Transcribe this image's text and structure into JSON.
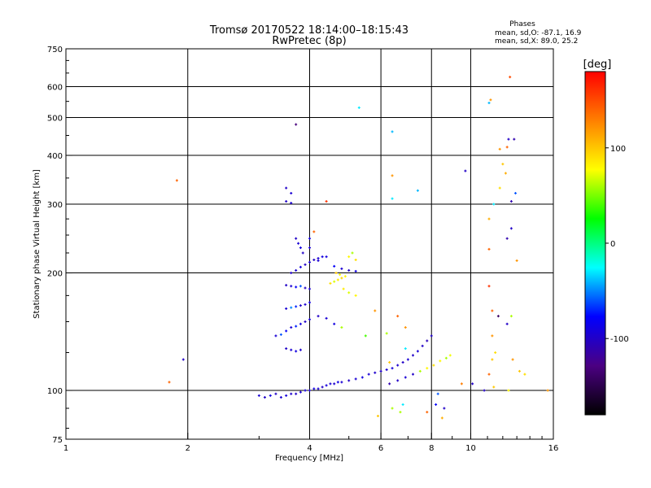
{
  "chart_data": {
    "type": "scatter",
    "title": "Tromsø 20170522 18:14:00–18:15:43",
    "subtitle": "RwPretec (8p)",
    "xlabel": "Frequency [MHz]",
    "ylabel": "Stationary phase Virtual Height [km]",
    "x_scale": "log",
    "y_scale": "log",
    "xlim": [
      1,
      16
    ],
    "ylim": [
      75,
      750
    ],
    "x_ticks": [
      1,
      2,
      4,
      6,
      8,
      10,
      16
    ],
    "y_ticks": [
      75,
      100,
      200,
      300,
      400,
      500,
      600,
      750
    ],
    "x_gridlines": [
      2,
      4,
      6,
      8,
      10
    ],
    "y_gridlines": [
      100,
      200,
      300,
      400,
      500,
      600
    ],
    "phases_box": {
      "heading": "Phases",
      "line_o": "mean, sd,O:  -87.1, 16.9",
      "line_x": "mean, sd,X:   89.0, 25.2"
    },
    "colorbar": {
      "label": "[deg]",
      "range": [
        -180,
        180
      ],
      "ticks": [
        100,
        0,
        -100
      ],
      "colors": [
        "#000000",
        "#4b0082",
        "#0000ff",
        "#00ffff",
        "#00ff00",
        "#ffff00",
        "#ff8000",
        "#ff0000"
      ]
    },
    "points": [
      [
        3.0,
        97,
        -95
      ],
      [
        3.1,
        96,
        -100
      ],
      [
        3.2,
        97,
        -90
      ],
      [
        3.3,
        98,
        -100
      ],
      [
        3.4,
        96,
        -95
      ],
      [
        3.5,
        97,
        -92
      ],
      [
        3.6,
        98,
        -98
      ],
      [
        3.7,
        98,
        -100
      ],
      [
        3.8,
        99,
        -95
      ],
      [
        3.9,
        100,
        -92
      ],
      [
        4.0,
        100,
        -98
      ],
      [
        4.1,
        101,
        -90
      ],
      [
        4.2,
        101,
        -95
      ],
      [
        4.3,
        102,
        -100
      ],
      [
        4.4,
        103,
        -92
      ],
      [
        4.5,
        104,
        -95
      ],
      [
        4.6,
        104,
        -97
      ],
      [
        4.7,
        105,
        -88
      ],
      [
        4.8,
        105,
        -95
      ],
      [
        5.0,
        106,
        -100
      ],
      [
        5.2,
        107,
        -95
      ],
      [
        5.4,
        108,
        -90
      ],
      [
        5.6,
        110,
        -95
      ],
      [
        5.8,
        111,
        -98
      ],
      [
        6.0,
        112,
        -100
      ],
      [
        6.2,
        113,
        -95
      ],
      [
        6.4,
        114,
        -92
      ],
      [
        6.6,
        116,
        -98
      ],
      [
        6.8,
        118,
        -100
      ],
      [
        7.0,
        120,
        -95
      ],
      [
        7.2,
        123,
        -100
      ],
      [
        7.4,
        126,
        -95
      ],
      [
        7.6,
        130,
        -100
      ],
      [
        7.8,
        134,
        -105
      ],
      [
        8.0,
        138,
        -100
      ],
      [
        6.3,
        104,
        -110
      ],
      [
        6.6,
        106,
        -100
      ],
      [
        6.9,
        108,
        -95
      ],
      [
        7.2,
        110,
        -100
      ],
      [
        7.5,
        112,
        60
      ],
      [
        7.8,
        114,
        80
      ],
      [
        8.1,
        116,
        90
      ],
      [
        8.4,
        119,
        80
      ],
      [
        8.7,
        121,
        60
      ],
      [
        8.9,
        123,
        75
      ],
      [
        3.3,
        138,
        -95
      ],
      [
        3.4,
        139,
        -60
      ],
      [
        3.5,
        142,
        -80
      ],
      [
        3.6,
        145,
        -95
      ],
      [
        3.7,
        146,
        -70
      ],
      [
        3.8,
        148,
        -90
      ],
      [
        3.9,
        150,
        -100
      ],
      [
        4.0,
        152,
        -95
      ],
      [
        4.2,
        155,
        -100
      ],
      [
        4.4,
        153,
        -95
      ],
      [
        4.6,
        148,
        -90
      ],
      [
        4.8,
        145,
        60
      ],
      [
        3.5,
        128,
        -100
      ],
      [
        3.6,
        127,
        -95
      ],
      [
        3.7,
        126,
        -90
      ],
      [
        3.8,
        127,
        -98
      ],
      [
        3.5,
        162,
        -95
      ],
      [
        3.6,
        163,
        -50
      ],
      [
        3.7,
        164,
        -70
      ],
      [
        3.8,
        165,
        -100
      ],
      [
        3.9,
        166,
        -95
      ],
      [
        4.0,
        168,
        -90
      ],
      [
        3.5,
        186,
        -100
      ],
      [
        3.6,
        185,
        -95
      ],
      [
        3.7,
        184,
        -80
      ],
      [
        3.8,
        185,
        -60
      ],
      [
        3.9,
        183,
        -100
      ],
      [
        4.0,
        182,
        -95
      ],
      [
        3.6,
        200,
        -100
      ],
      [
        3.7,
        203,
        -95
      ],
      [
        3.8,
        207,
        -90
      ],
      [
        3.9,
        210,
        -100
      ],
      [
        4.0,
        213,
        -95
      ],
      [
        4.1,
        216,
        -100
      ],
      [
        4.2,
        218,
        -95
      ],
      [
        4.3,
        220,
        -90
      ],
      [
        4.6,
        190,
        70
      ],
      [
        4.7,
        192,
        85
      ],
      [
        4.8,
        194,
        95
      ],
      [
        4.9,
        196,
        80
      ],
      [
        4.65,
        200,
        100
      ],
      [
        4.75,
        198,
        75
      ],
      [
        4.5,
        188,
        90
      ],
      [
        4.85,
        182,
        85
      ],
      [
        5.0,
        178,
        70
      ],
      [
        5.2,
        175,
        80
      ],
      [
        4.2,
        215,
        -95
      ],
      [
        4.4,
        220,
        -90
      ],
      [
        4.6,
        208,
        -80
      ],
      [
        4.8,
        205,
        -95
      ],
      [
        5.0,
        203,
        -100
      ],
      [
        5.2,
        202,
        -90
      ],
      [
        5.0,
        220,
        80
      ],
      [
        5.1,
        225,
        60
      ],
      [
        5.2,
        216,
        90
      ],
      [
        3.7,
        245,
        -100
      ],
      [
        3.75,
        238,
        -95
      ],
      [
        3.8,
        232,
        -90
      ],
      [
        3.85,
        225,
        -100
      ],
      [
        4.0,
        232,
        -95
      ],
      [
        4.0,
        245,
        -90
      ],
      [
        3.5,
        305,
        -100
      ],
      [
        3.6,
        302,
        -95
      ],
      [
        3.5,
        330,
        -100
      ],
      [
        3.6,
        320,
        -95
      ],
      [
        3.7,
        480,
        -130
      ],
      [
        5.3,
        530,
        -30
      ],
      [
        6.4,
        460,
        -40
      ],
      [
        6.4,
        355,
        120
      ],
      [
        6.4,
        310,
        -30
      ],
      [
        7.4,
        325,
        -40
      ],
      [
        9.7,
        365,
        -100
      ],
      [
        11.1,
        545,
        -40
      ],
      [
        11.2,
        555,
        120
      ],
      [
        12.5,
        635,
        150
      ],
      [
        12.4,
        440,
        -100
      ],
      [
        12.8,
        440,
        -110
      ],
      [
        12.3,
        420,
        140
      ],
      [
        11.8,
        415,
        120
      ],
      [
        12.0,
        380,
        100
      ],
      [
        12.2,
        360,
        110
      ],
      [
        11.8,
        330,
        90
      ],
      [
        12.9,
        320,
        -60
      ],
      [
        11.4,
        300,
        -30
      ],
      [
        12.6,
        305,
        -110
      ],
      [
        11.1,
        275,
        110
      ],
      [
        12.6,
        260,
        -100
      ],
      [
        12.3,
        245,
        -110
      ],
      [
        11.1,
        230,
        140
      ],
      [
        13.0,
        215,
        120
      ],
      [
        11.1,
        185,
        160
      ],
      [
        11.3,
        160,
        140
      ],
      [
        11.7,
        155,
        -140
      ],
      [
        12.3,
        148,
        -100
      ],
      [
        12.6,
        155,
        60
      ],
      [
        11.3,
        138,
        120
      ],
      [
        11.5,
        125,
        90
      ],
      [
        11.3,
        120,
        100
      ],
      [
        12.7,
        120,
        120
      ],
      [
        11.1,
        110,
        140
      ],
      [
        13.2,
        112,
        100
      ],
      [
        13.6,
        110,
        90
      ],
      [
        11.4,
        102,
        100
      ],
      [
        10.8,
        100,
        -100
      ],
      [
        12.4,
        100,
        80
      ],
      [
        6.3,
        118,
        100
      ],
      [
        6.9,
        128,
        -30
      ],
      [
        5.8,
        160,
        120
      ],
      [
        6.6,
        155,
        140
      ],
      [
        6.9,
        145,
        120
      ],
      [
        6.2,
        140,
        60
      ],
      [
        5.5,
        138,
        40
      ],
      [
        8.3,
        98,
        -60
      ],
      [
        8.2,
        92,
        -80
      ],
      [
        8.6,
        90,
        -100
      ],
      [
        8.5,
        85,
        110
      ],
      [
        6.8,
        92,
        -30
      ],
      [
        6.4,
        90,
        60
      ],
      [
        6.7,
        88,
        60
      ],
      [
        5.9,
        86,
        100
      ],
      [
        7.8,
        88,
        140
      ],
      [
        1.88,
        345,
        140
      ],
      [
        1.8,
        105,
        140
      ],
      [
        1.95,
        120,
        -100
      ],
      [
        9.5,
        104,
        130
      ],
      [
        10.1,
        104,
        -100
      ],
      [
        15.5,
        100,
        120
      ],
      [
        4.4,
        305,
        160
      ],
      [
        4.1,
        255,
        140
      ]
    ]
  }
}
